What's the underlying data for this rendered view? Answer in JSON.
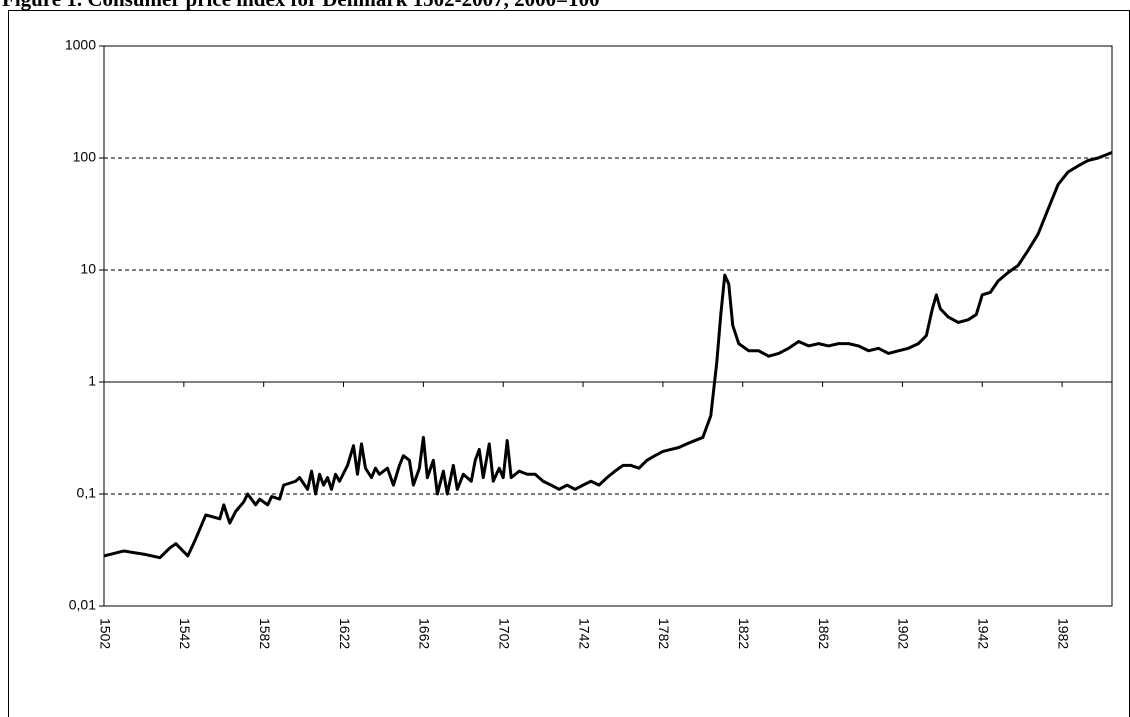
{
  "chart_data": {
    "type": "line",
    "title": "Figure 1.  Consumer price index for Denmark 1502-2007, 2000=100",
    "log_scale_y": true,
    "grid": true,
    "grid_style": "dashed",
    "x_axis_crosses_at": 1,
    "xlim": [
      1502,
      2007
    ],
    "xticks": [
      1502,
      1542,
      1582,
      1622,
      1662,
      1702,
      1742,
      1782,
      1822,
      1862,
      1902,
      1942,
      1982
    ],
    "ylim": [
      0.01,
      1000
    ],
    "yticks": [
      {
        "value": 0.01,
        "label": "0,01"
      },
      {
        "value": 0.1,
        "label": "0,1"
      },
      1,
      10,
      100,
      1000
    ],
    "series": [
      {
        "name": "Consumer price index",
        "color": "#000000",
        "x": [
          1502,
          1512,
          1522,
          1530,
          1535,
          1538,
          1544,
          1548,
          1553,
          1560,
          1562,
          1565,
          1568,
          1572,
          1574,
          1578,
          1580,
          1584,
          1586,
          1590,
          1592,
          1598,
          1600,
          1604,
          1606,
          1608,
          1610,
          1612,
          1614,
          1616,
          1618,
          1620,
          1624,
          1627,
          1629,
          1631,
          1633,
          1636,
          1638,
          1640,
          1644,
          1647,
          1650,
          1652,
          1655,
          1657,
          1660,
          1662,
          1664,
          1667,
          1669,
          1672,
          1674,
          1677,
          1679,
          1682,
          1686,
          1688,
          1690,
          1692,
          1695,
          1697,
          1700,
          1702,
          1704,
          1706,
          1710,
          1714,
          1718,
          1722,
          1726,
          1730,
          1734,
          1738,
          1742,
          1746,
          1750,
          1754,
          1758,
          1762,
          1766,
          1770,
          1774,
          1778,
          1782,
          1786,
          1790,
          1794,
          1798,
          1802,
          1806,
          1809,
          1811,
          1813,
          1815,
          1817,
          1820,
          1825,
          1830,
          1835,
          1840,
          1845,
          1850,
          1855,
          1860,
          1865,
          1870,
          1875,
          1880,
          1885,
          1890,
          1895,
          1900,
          1905,
          1910,
          1914,
          1917,
          1919,
          1921,
          1925,
          1930,
          1935,
          1939,
          1942,
          1946,
          1950,
          1955,
          1960,
          1965,
          1970,
          1975,
          1980,
          1985,
          1990,
          1995,
          2000,
          2007
        ],
        "values": [
          0.028,
          0.031,
          0.029,
          0.027,
          0.033,
          0.036,
          0.028,
          0.04,
          0.065,
          0.06,
          0.08,
          0.055,
          0.07,
          0.085,
          0.1,
          0.08,
          0.09,
          0.08,
          0.095,
          0.09,
          0.12,
          0.13,
          0.14,
          0.11,
          0.16,
          0.1,
          0.15,
          0.12,
          0.14,
          0.11,
          0.15,
          0.13,
          0.18,
          0.27,
          0.15,
          0.28,
          0.17,
          0.14,
          0.17,
          0.15,
          0.17,
          0.12,
          0.18,
          0.22,
          0.2,
          0.12,
          0.17,
          0.32,
          0.14,
          0.2,
          0.1,
          0.16,
          0.1,
          0.18,
          0.11,
          0.15,
          0.13,
          0.2,
          0.25,
          0.14,
          0.28,
          0.13,
          0.17,
          0.14,
          0.3,
          0.14,
          0.16,
          0.15,
          0.15,
          0.13,
          0.12,
          0.11,
          0.12,
          0.11,
          0.12,
          0.13,
          0.12,
          0.14,
          0.16,
          0.18,
          0.18,
          0.17,
          0.2,
          0.22,
          0.24,
          0.25,
          0.26,
          0.28,
          0.3,
          0.32,
          0.5,
          1.5,
          4,
          9,
          7.5,
          3.2,
          2.2,
          1.9,
          1.9,
          1.7,
          1.8,
          2.0,
          2.3,
          2.1,
          2.2,
          2.1,
          2.2,
          2.2,
          2.1,
          1.9,
          2.0,
          1.8,
          1.9,
          2.0,
          2.2,
          2.6,
          4.5,
          6,
          4.5,
          3.8,
          3.4,
          3.6,
          4,
          6,
          6.3,
          8,
          9.5,
          11,
          15,
          21,
          35,
          58,
          75,
          85,
          95,
          100,
          112
        ]
      }
    ]
  }
}
